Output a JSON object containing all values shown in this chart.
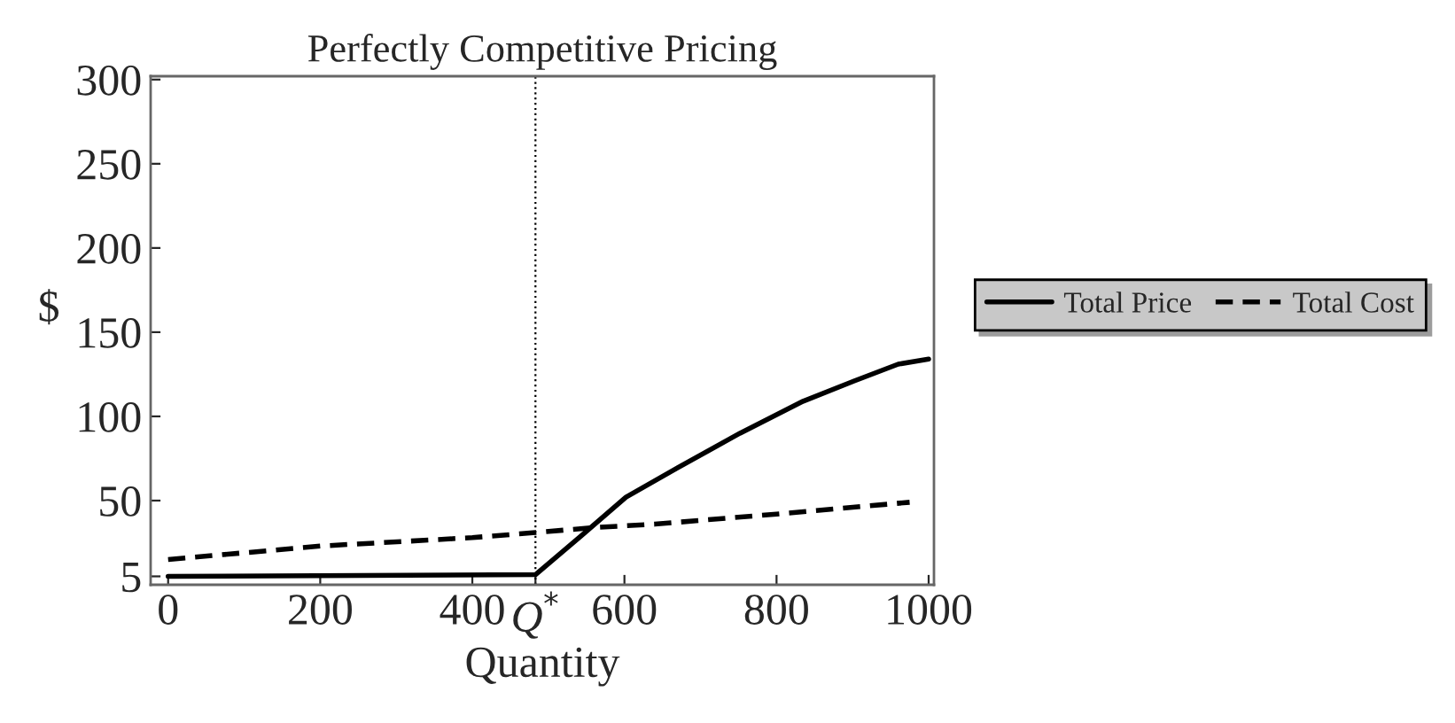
{
  "chart_data": {
    "type": "line",
    "title": "Perfectly Competitive Pricing",
    "xlabel": "Quantity",
    "ylabel": "$",
    "series": [
      {
        "name": "Total Price",
        "color": "#000000",
        "line_style": "solid",
        "x": [
          0,
          483,
          543,
          602,
          668,
          752,
          835,
          902,
          960,
          1000
        ],
        "values": [
          5,
          6,
          29,
          52,
          69,
          90,
          109,
          121,
          131,
          134
        ]
      },
      {
        "name": "Total Cost",
        "color": "#000000",
        "line_style": "dashed",
        "x": [
          0,
          200,
          400,
          483,
          560,
          640,
          800,
          975
        ],
        "values": [
          15,
          23,
          28,
          31,
          34,
          36,
          42,
          49
        ]
      }
    ],
    "xlim": [
      -23,
      1007
    ],
    "xticks": [
      0,
      200,
      400,
      {
        "value": 483,
        "label": "Q$^{*}$"
      },
      600,
      800,
      1000
    ],
    "ylim": [
      0,
      302
    ],
    "yticks": [
      5,
      50,
      100,
      150,
      200,
      250,
      300
    ],
    "ref_lines": [
      {
        "axis": "x",
        "value": 483,
        "color": "#000000",
        "line_style": "dotted"
      }
    ],
    "grid": false,
    "legend": "right",
    "marker": "none"
  }
}
